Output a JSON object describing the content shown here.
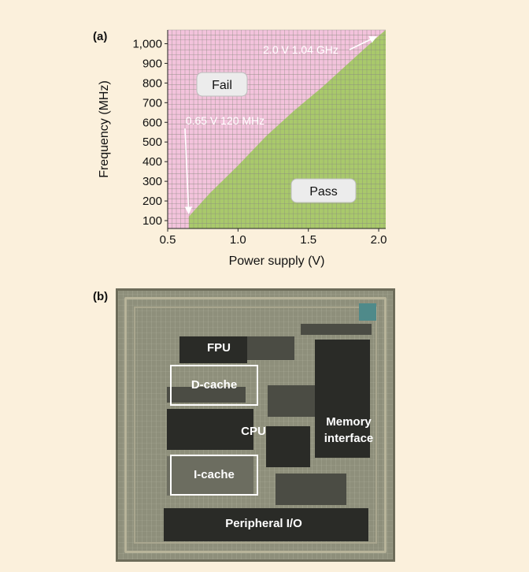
{
  "panel_a": {
    "label": "(a)",
    "fail_label": "Fail",
    "pass_label": "Pass",
    "annotation_high": "2.0 V 1.04 GHz",
    "annotation_low": "0.65 V 120 MHz"
  },
  "panel_b": {
    "label": "(b)",
    "blocks": {
      "fpu": "FPU",
      "dcache": "D-cache",
      "cpu": "CPU",
      "memory_line1": "Memory",
      "memory_line2": "interface",
      "icache": "I-cache",
      "peripheral": "Peripheral I/O"
    }
  },
  "colors": {
    "fail_region": "#f3c3dc",
    "pass_region": "#a9c96b",
    "grid": "#8a8a80",
    "page_background": "#fbf0dc"
  },
  "chart_data": {
    "type": "area",
    "title": "",
    "xlabel": "Power supply (V)",
    "ylabel": "Frequency (MHz)",
    "xlim": [
      0.5,
      2.05
    ],
    "ylim": [
      60,
      1070
    ],
    "xticks": [
      0.5,
      1.0,
      1.5,
      2.0
    ],
    "xtick_labels": [
      "0.5",
      "1.0",
      "1.5",
      "2.0"
    ],
    "yticks": [
      100,
      200,
      300,
      400,
      500,
      600,
      700,
      800,
      900,
      1000
    ],
    "ytick_labels": [
      "100",
      "200",
      "300",
      "400",
      "500",
      "600",
      "700",
      "800",
      "900",
      "1,000"
    ],
    "grid": true,
    "regions": [
      "Fail",
      "Pass"
    ],
    "boundary": {
      "x": [
        0.65,
        0.8,
        1.0,
        1.2,
        1.4,
        1.6,
        1.8,
        2.0
      ],
      "y": [
        120,
        240,
        380,
        530,
        660,
        780,
        910,
        1040
      ]
    },
    "annotations": [
      {
        "text": "2.0 V 1.04 GHz",
        "x": 2.0,
        "y": 1040
      },
      {
        "text": "0.65 V 120 MHz",
        "x": 0.65,
        "y": 120
      }
    ]
  }
}
